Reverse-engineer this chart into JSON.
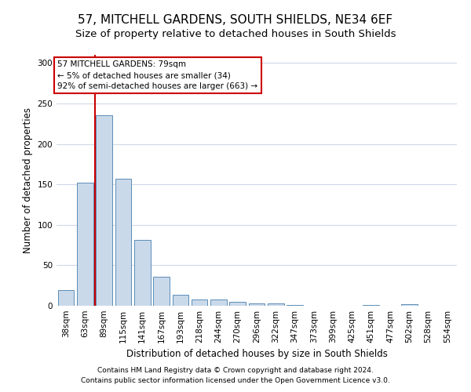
{
  "title": "57, MITCHELL GARDENS, SOUTH SHIELDS, NE34 6EF",
  "subtitle": "Size of property relative to detached houses in South Shields",
  "xlabel": "Distribution of detached houses by size in South Shields",
  "ylabel": "Number of detached properties",
  "categories": [
    "38sqm",
    "63sqm",
    "89sqm",
    "115sqm",
    "141sqm",
    "167sqm",
    "193sqm",
    "218sqm",
    "244sqm",
    "270sqm",
    "296sqm",
    "322sqm",
    "347sqm",
    "373sqm",
    "399sqm",
    "425sqm",
    "451sqm",
    "477sqm",
    "502sqm",
    "528sqm",
    "554sqm"
  ],
  "values": [
    19,
    152,
    235,
    157,
    81,
    36,
    14,
    8,
    8,
    5,
    3,
    3,
    1,
    0,
    0,
    0,
    1,
    0,
    2,
    0,
    0
  ],
  "bar_color": "#c9d9ea",
  "bar_edge_color": "#5b8db8",
  "vline_x": 1.5,
  "vline_color": "#cc0000",
  "annotation_text": "57 MITCHELL GARDENS: 79sqm\n← 5% of detached houses are smaller (34)\n92% of semi-detached houses are larger (663) →",
  "annotation_box_color": "#ffffff",
  "annotation_box_edge": "#cc0000",
  "footnote1": "Contains HM Land Registry data © Crown copyright and database right 2024.",
  "footnote2": "Contains public sector information licensed under the Open Government Licence v3.0.",
  "ylim": [
    0,
    310
  ],
  "background_color": "#ffffff",
  "grid_color": "#d0d8e8",
  "title_fontsize": 11,
  "subtitle_fontsize": 9.5,
  "axis_label_fontsize": 8.5,
  "tick_fontsize": 7.5,
  "annotation_fontsize": 7.5,
  "footnote_fontsize": 6.5
}
